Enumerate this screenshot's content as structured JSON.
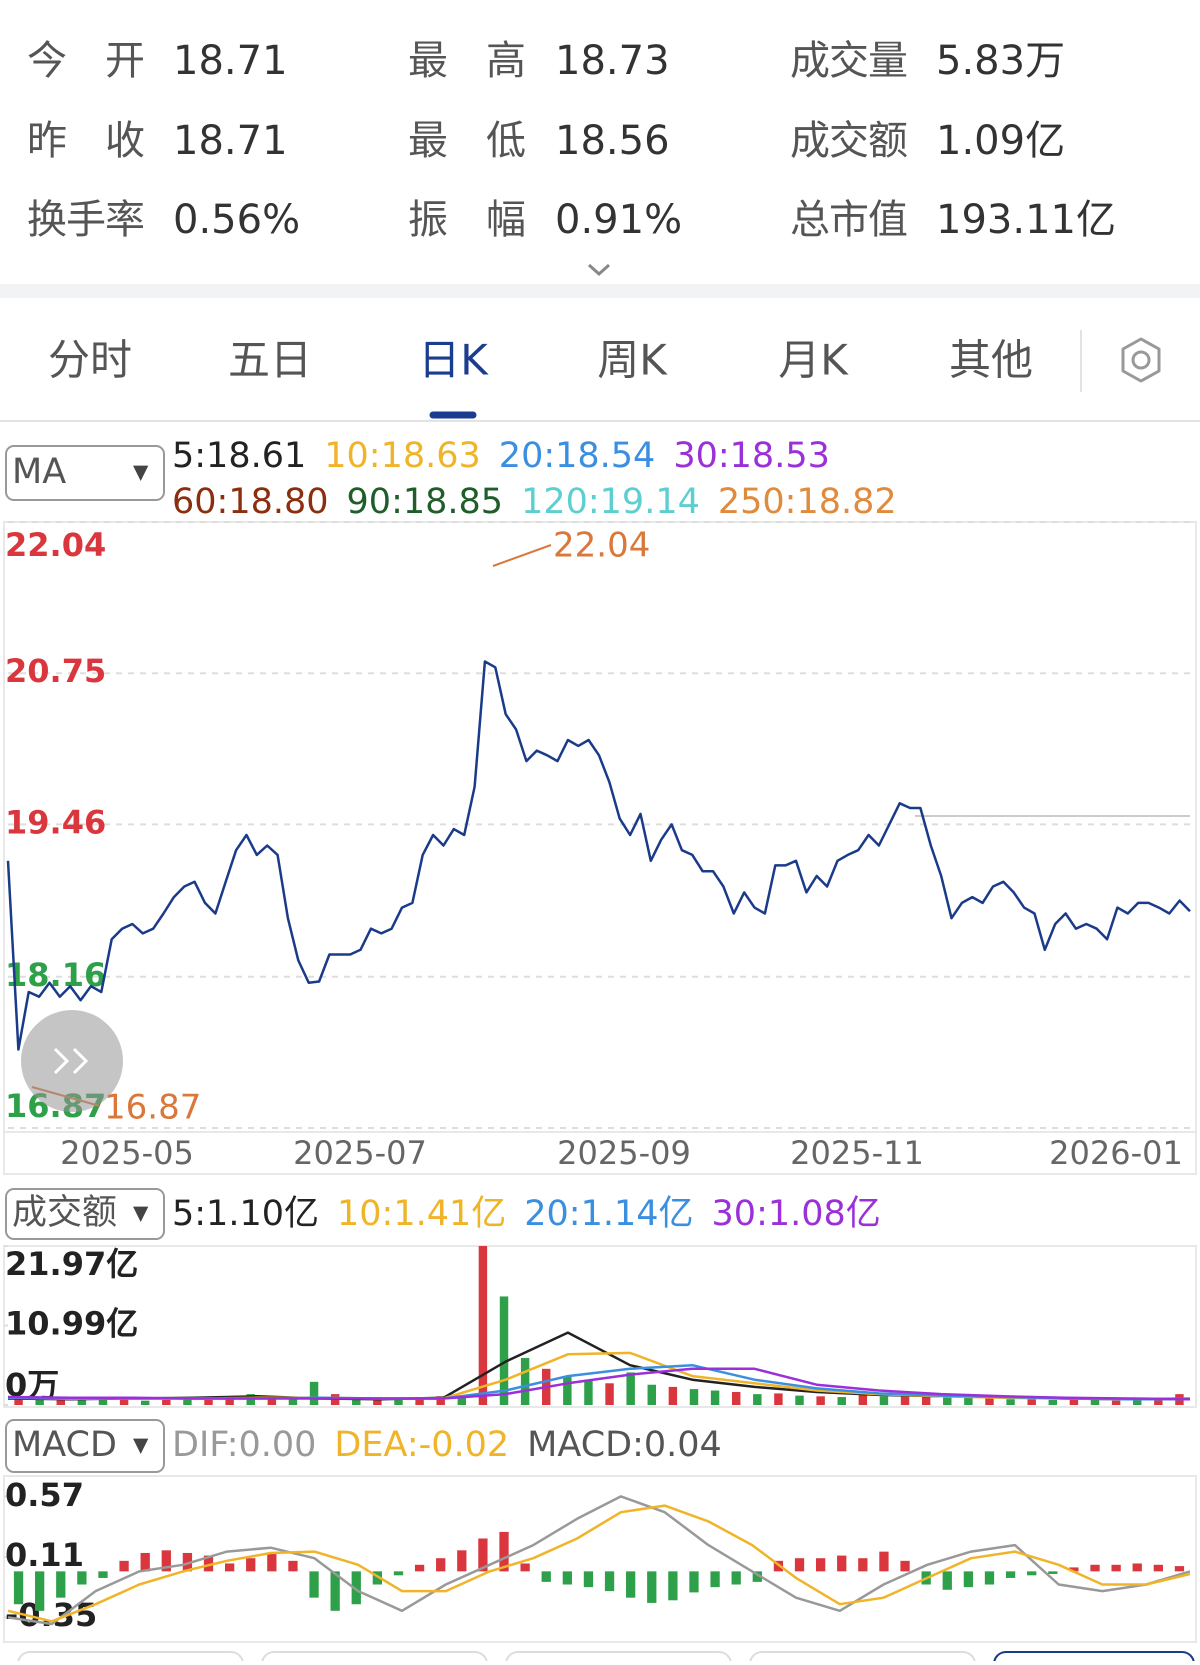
{
  "header": {
    "items": [
      {
        "label": "今开",
        "value": 18.71
      },
      {
        "label": "最高",
        "value": 18.73
      },
      {
        "label": "成交量",
        "value": "5.83万"
      },
      {
        "label": "昨收",
        "value": 18.71
      },
      {
        "label": "最低",
        "value": 18.56
      },
      {
        "label": "成交额",
        "value": "1.09亿"
      },
      {
        "label": "换手率",
        "value": "0.56%"
      },
      {
        "label": "振幅",
        "value": "0.91%"
      },
      {
        "label": "总市值",
        "value": "193.11亿"
      }
    ]
  },
  "tabs": {
    "items": [
      "分时",
      "五日",
      "日K",
      "周K",
      "月K",
      "其他"
    ],
    "active": 2
  },
  "chart_data": [
    {
      "type": "line",
      "indicator": "MA",
      "ma_labels": [
        {
          "text": "5:18.61",
          "color": "#222222"
        },
        {
          "text": "10:18.63",
          "color": "#f0b429"
        },
        {
          "text": "20:18.54",
          "color": "#3b8fe0"
        },
        {
          "text": "30:18.53",
          "color": "#9b30d9"
        },
        {
          "text": "60:18.80",
          "color": "#8b2e0f"
        },
        {
          "text": "90:18.85",
          "color": "#1f5e2a"
        },
        {
          "text": "120:19.14",
          "color": "#5ecfd0"
        },
        {
          "text": "250:18.82",
          "color": "#e08a3c"
        }
      ],
      "series": [
        {
          "color": "#1a3a8a",
          "values": [
            19.15,
            17.54,
            18.03,
            17.99,
            18.11,
            17.99,
            18.08,
            17.96,
            18.08,
            18.03,
            18.48,
            18.57,
            18.61,
            18.53,
            18.57,
            18.7,
            18.84,
            18.93,
            18.97,
            18.79,
            18.7,
            18.97,
            19.24,
            19.37,
            19.2,
            19.28,
            19.2,
            18.66,
            18.3,
            18.11,
            18.12,
            18.35,
            18.35,
            18.35,
            18.39,
            18.57,
            18.53,
            18.57,
            18.75,
            18.79,
            19.2,
            19.37,
            19.28,
            19.42,
            19.37,
            19.78,
            20.85,
            20.8,
            20.4,
            20.27,
            20.0,
            20.09,
            20.05,
            20.0,
            20.18,
            20.13,
            20.18,
            20.05,
            19.82,
            19.51,
            19.37,
            19.55,
            19.15,
            19.33,
            19.46,
            19.24,
            19.2,
            19.06,
            19.06,
            18.93,
            18.7,
            18.88,
            18.75,
            18.7,
            19.11,
            19.11,
            19.15,
            18.88,
            19.02,
            18.93,
            19.15,
            19.2,
            19.24,
            19.37,
            19.28,
            19.46,
            19.64,
            19.6,
            19.6,
            19.28,
            19.02,
            18.66,
            18.79,
            18.84,
            18.79,
            18.93,
            18.97,
            18.88,
            18.75,
            18.7,
            18.39,
            18.61,
            18.7,
            18.57,
            18.61,
            18.57,
            18.48,
            18.75,
            18.7,
            18.79,
            18.79,
            18.75,
            18.7,
            18.81,
            18.72
          ]
        }
      ],
      "ylim": [
        16.87,
        22.04
      ],
      "yticks": [
        22.04,
        20.75,
        19.46,
        18.16,
        16.87
      ],
      "grid": true,
      "x_labels": [
        "2025-05",
        "2025-07",
        "2025-09",
        "2025-11",
        "2026-01"
      ],
      "high_label": 22.04,
      "low_label": 16.87,
      "mark_color": "#d9783a"
    },
    {
      "type": "bar",
      "indicator": "成交额",
      "ma_labels": [
        {
          "text": "5:1.10亿",
          "color": "#222222"
        },
        {
          "text": "10:1.41亿",
          "color": "#f0b429"
        },
        {
          "text": "20:1.14亿",
          "color": "#3b8fe0"
        },
        {
          "text": "30:1.08亿",
          "color": "#9b30d9"
        }
      ],
      "values": [
        1.2,
        0.8,
        0.9,
        0.7,
        0.8,
        0.9,
        0.6,
        0.7,
        0.8,
        0.7,
        0.9,
        1.5,
        0.8,
        1.0,
        3.2,
        1.5,
        0.9,
        0.7,
        0.8,
        0.9,
        1.2,
        1.0,
        21.97,
        15.0,
        6.5,
        5.0,
        4.0,
        3.5,
        3.0,
        4.5,
        2.8,
        2.5,
        2.2,
        2.0,
        1.8,
        1.5,
        1.6,
        1.3,
        1.2,
        1.1,
        1.4,
        1.2,
        1.5,
        1.3,
        1.1,
        1.0,
        0.9,
        0.8,
        0.9,
        0.7,
        0.8,
        0.7,
        0.6,
        0.8,
        0.9,
        1.5
      ],
      "bar_colors": [
        "#d9363e",
        "#2fa04a",
        "#d9363e",
        "#2fa04a",
        "#2fa04a",
        "#d9363e",
        "#2fa04a",
        "#d9363e",
        "#2fa04a",
        "#d9363e",
        "#d9363e",
        "#2fa04a",
        "#d9363e",
        "#2fa04a",
        "#2fa04a",
        "#d9363e",
        "#2fa04a",
        "#d9363e",
        "#2fa04a",
        "#d9363e",
        "#d9363e",
        "#2fa04a",
        "#d9363e",
        "#2fa04a",
        "#2fa04a",
        "#d9363e",
        "#2fa04a",
        "#2fa04a",
        "#d9363e",
        "#2fa04a",
        "#2fa04a",
        "#d9363e",
        "#2fa04a",
        "#2fa04a",
        "#d9363e",
        "#2fa04a",
        "#d9363e",
        "#2fa04a",
        "#d9363e",
        "#2fa04a",
        "#d9363e",
        "#2fa04a",
        "#d9363e",
        "#d9363e",
        "#2fa04a",
        "#2fa04a",
        "#d9363e",
        "#2fa04a",
        "#d9363e",
        "#2fa04a",
        "#d9363e",
        "#2fa04a",
        "#d9363e",
        "#2fa04a",
        "#d9363e",
        "#d9363e"
      ],
      "lines": [
        {
          "color": "#222222",
          "values": [
            0.9,
            0.8,
            0.9,
            1.0,
            1.2,
            0.9,
            0.8,
            1.0,
            6.0,
            10.0,
            5.5,
            3.5,
            2.5,
            1.8,
            1.4,
            1.2,
            1.1,
            0.9,
            0.8,
            0.9
          ]
        },
        {
          "color": "#f0b429",
          "values": [
            1.0,
            0.9,
            0.9,
            0.9,
            1.0,
            1.0,
            0.9,
            0.9,
            3.5,
            7.0,
            7.2,
            4.0,
            3.0,
            2.0,
            1.5,
            1.2,
            1.0,
            0.9,
            0.8,
            0.85
          ]
        },
        {
          "color": "#3b8fe0",
          "values": [
            1.0,
            1.0,
            0.9,
            0.9,
            0.9,
            1.0,
            0.9,
            0.9,
            2.0,
            4.0,
            5.0,
            5.5,
            3.5,
            2.3,
            1.6,
            1.3,
            1.1,
            0.9,
            0.8,
            0.8
          ]
        },
        {
          "color": "#9b30d9",
          "values": [
            1.1,
            1.0,
            1.0,
            0.9,
            0.9,
            0.9,
            0.9,
            0.9,
            1.5,
            3.0,
            4.2,
            5.0,
            5.0,
            2.8,
            2.0,
            1.5,
            1.2,
            1.0,
            0.9,
            0.8
          ]
        }
      ],
      "ylim": [
        0,
        21.97
      ],
      "yticks": [
        {
          "value": 21.97,
          "label": "21.97亿"
        },
        {
          "value": 10.99,
          "label": "10.99亿"
        },
        {
          "value": 0,
          "label": "0万"
        }
      ]
    },
    {
      "type": "macd",
      "indicator": "MACD",
      "ma_labels": [
        {
          "text": "DIF:0.00",
          "color": "#999999"
        },
        {
          "text": "DEA:-0.02",
          "color": "#f0b429"
        },
        {
          "text": "MACD:0.04",
          "color": "#555555"
        }
      ],
      "values": [
        -0.25,
        -0.3,
        -0.2,
        -0.1,
        -0.05,
        0.08,
        0.14,
        0.16,
        0.14,
        0.12,
        0.06,
        0.1,
        0.14,
        0.08,
        -0.2,
        -0.3,
        -0.25,
        -0.1,
        -0.03,
        0.05,
        0.1,
        0.16,
        0.25,
        0.3,
        0.06,
        -0.08,
        -0.1,
        -0.12,
        -0.15,
        -0.2,
        -0.24,
        -0.22,
        -0.16,
        -0.12,
        -0.1,
        -0.08,
        0.08,
        0.1,
        0.1,
        0.12,
        0.1,
        0.15,
        0.08,
        -0.1,
        -0.14,
        -0.12,
        -0.1,
        -0.05,
        -0.03,
        -0.02,
        0.03,
        0.05,
        0.05,
        0.06,
        0.05,
        0.04
      ],
      "up_color": "#d9363e",
      "down_color": "#2fa04a",
      "lines": [
        {
          "color": "#999999",
          "values": [
            -0.35,
            -0.4,
            -0.15,
            0.0,
            0.05,
            0.15,
            0.18,
            0.1,
            -0.15,
            -0.3,
            -0.1,
            0.05,
            0.2,
            0.4,
            0.57,
            0.45,
            0.2,
            0.0,
            -0.2,
            -0.3,
            -0.1,
            0.05,
            0.15,
            0.2,
            -0.1,
            -0.15,
            -0.1,
            0.0
          ]
        },
        {
          "color": "#f0b429",
          "values": [
            -0.3,
            -0.38,
            -0.25,
            -0.1,
            0.0,
            0.08,
            0.14,
            0.15,
            0.05,
            -0.15,
            -0.15,
            0.0,
            0.1,
            0.25,
            0.45,
            0.5,
            0.38,
            0.2,
            -0.05,
            -0.25,
            -0.2,
            -0.05,
            0.1,
            0.15,
            0.05,
            -0.1,
            -0.1,
            -0.02
          ]
        }
      ],
      "ylim": [
        -0.56,
        0.71
      ],
      "yticks": [
        0.57,
        0.11,
        -0.35
      ]
    }
  ]
}
